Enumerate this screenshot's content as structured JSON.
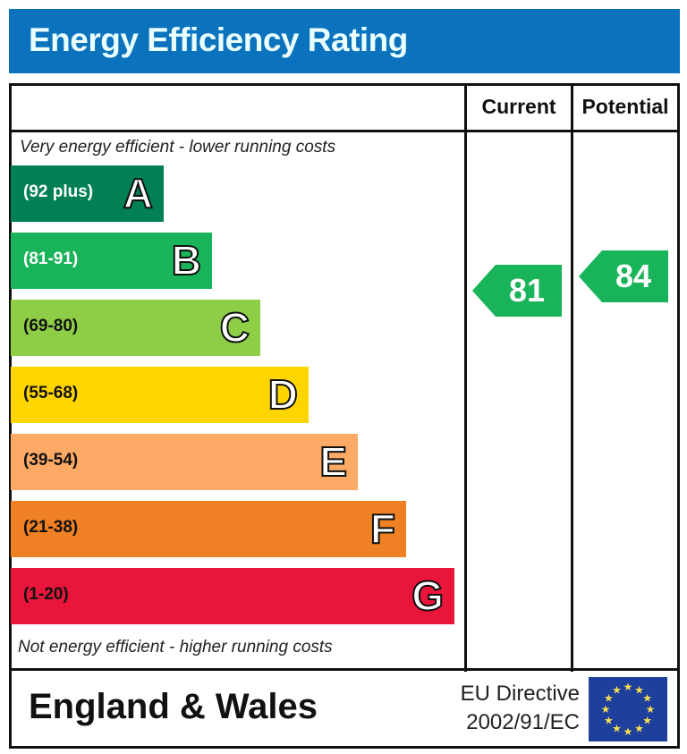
{
  "title": "Energy Efficiency Rating",
  "columns": {
    "current": "Current",
    "potential": "Potential"
  },
  "top_note": "Very energy efficient - lower running costs",
  "bottom_note": "Not energy efficient - higher running costs",
  "footer": {
    "region": "England & Wales",
    "directive_line1": "EU Directive",
    "directive_line2": "2002/91/EC",
    "flag": "eu-flag"
  },
  "chart_data": {
    "type": "bar",
    "title": "Energy Efficiency Rating",
    "categories": [
      "A",
      "B",
      "C",
      "D",
      "E",
      "F",
      "G"
    ],
    "ranges": [
      "(92 plus)",
      "(81-91)",
      "(69-80)",
      "(55-68)",
      "(39-54)",
      "(21-38)",
      "(1-20)"
    ],
    "colors": [
      "#008054",
      "#19b459",
      "#8dce46",
      "#ffd500",
      "#fcaa65",
      "#ef8023",
      "#e9153b"
    ],
    "range_text_colors": [
      "#ffffff",
      "#ffffff",
      "#111111",
      "#111111",
      "#111111",
      "#111111",
      "#111111"
    ],
    "current": {
      "label": "Current",
      "value": 81,
      "band": "B",
      "color": "#19b459"
    },
    "potential": {
      "label": "Potential",
      "value": 84,
      "band": "B",
      "color": "#19b459"
    }
  }
}
